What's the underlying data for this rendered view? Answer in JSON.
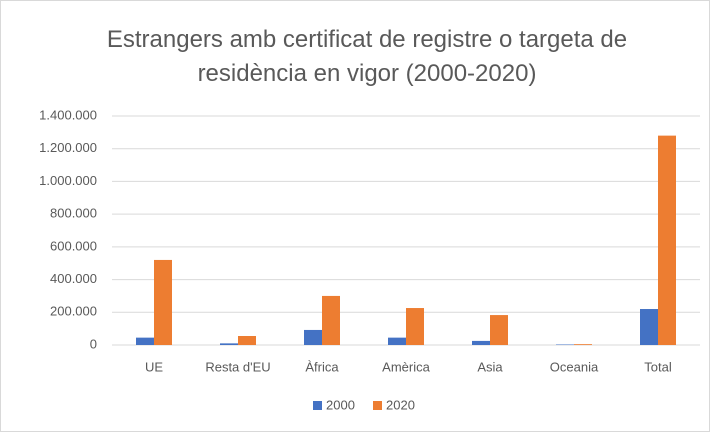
{
  "chart_data": {
    "type": "bar",
    "title": "Estrangers amb certificat de registre o targeta de residència en vigor (2000-2020)",
    "categories": [
      "UE",
      "Resta d'EU",
      "Àfrica",
      "Amèrica",
      "Asia",
      "Oceania",
      "Total"
    ],
    "series": [
      {
        "name": "2000",
        "color": "#4472c4",
        "values": [
          45000,
          10000,
          92000,
          45000,
          25000,
          3000,
          220000
        ]
      },
      {
        "name": "2020",
        "color": "#ed7d31",
        "values": [
          520000,
          55000,
          300000,
          226000,
          183000,
          5000,
          1280000
        ]
      }
    ],
    "ylim": [
      0,
      1400000
    ],
    "yticks": [
      0,
      {
        "value": 200000,
        "label": "200.000"
      },
      {
        "value": 400000,
        "label": "400.000"
      },
      {
        "value": 600000,
        "label": "600.000"
      },
      {
        "value": 800000,
        "label": "800.000"
      },
      {
        "value": 1000000,
        "label": "1.000.000"
      },
      {
        "value": 1200000,
        "label": "1.200.000"
      },
      {
        "value": 1400000,
        "label": "1.400.000"
      }
    ],
    "grid": true,
    "legend": "bottom"
  }
}
